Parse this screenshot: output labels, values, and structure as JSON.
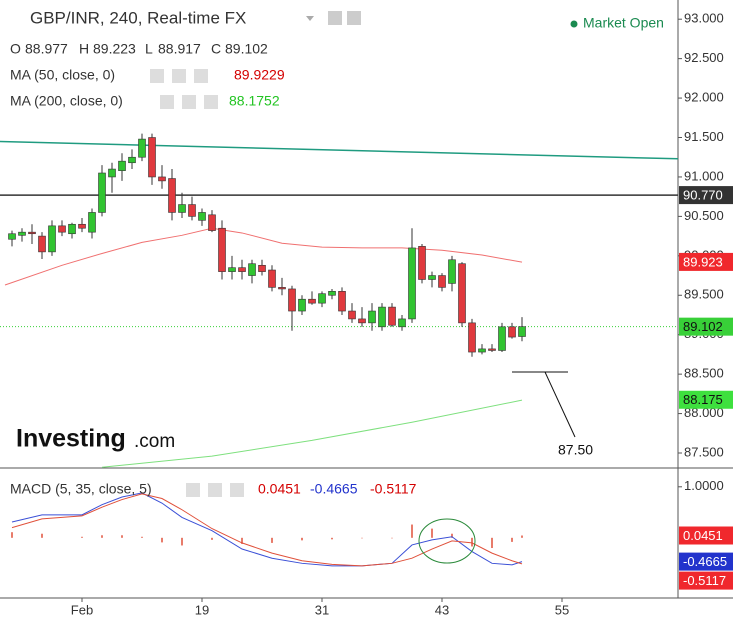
{
  "chart_data": [
    {
      "type": "candlestick",
      "title": "GBP/INR, 240, Real-time FX",
      "status": "Market Open",
      "ohlc_labels": [
        "O",
        "H",
        "L",
        "C"
      ],
      "ohlc_values": [
        88.977,
        89.223,
        88.917,
        89.102
      ],
      "logo": [
        "Investing",
        ".com"
      ],
      "annotation": "87.50",
      "xlim": [
        -1.2,
        66.6
      ],
      "xticks": [
        {
          "value": 7,
          "label": "Feb"
        },
        19,
        31,
        43,
        55
      ],
      "ylim": [
        87.31,
        93.18
      ],
      "yticks": [
        {
          "value": 87.5,
          "label": "87.500"
        },
        {
          "value": 88,
          "label": "88.000"
        },
        {
          "value": 88.5,
          "label": "88.500"
        },
        {
          "value": 89,
          "label": "89.000"
        },
        {
          "value": 89.5,
          "label": "89.500"
        },
        {
          "value": 90,
          "label": "90.000"
        },
        {
          "value": 90.5,
          "label": "90.500"
        },
        {
          "value": 91,
          "label": "91.000"
        },
        {
          "value": 91.5,
          "label": "91.500"
        },
        {
          "value": 92,
          "label": "92.000"
        },
        {
          "value": 92.5,
          "label": "92.500"
        },
        {
          "value": 93,
          "label": "93.000"
        }
      ],
      "up_color": "#31c431",
      "down_color": "#e0393e",
      "close_color": "#38d038",
      "x": [
        0,
        1,
        2,
        3,
        4,
        5,
        6,
        7,
        8,
        9,
        10,
        11,
        12,
        13,
        14,
        15,
        16,
        17,
        18,
        19,
        20,
        21,
        22,
        23,
        24,
        25,
        26,
        27,
        28,
        29,
        30,
        31,
        32,
        33,
        34,
        35,
        36,
        37,
        38,
        39,
        40,
        41,
        42,
        43,
        44,
        45,
        46,
        47,
        48,
        49,
        50,
        51
      ],
      "open": [
        90.21,
        90.26,
        90.3,
        90.25,
        90.05,
        90.38,
        90.28,
        90.4,
        90.3,
        90.55,
        91.0,
        91.08,
        91.18,
        91.25,
        91.5,
        91.0,
        90.98,
        90.55,
        90.65,
        90.45,
        90.52,
        90.35,
        89.8,
        89.85,
        89.75,
        89.88,
        89.82,
        89.6,
        89.58,
        89.3,
        89.45,
        89.4,
        89.5,
        89.55,
        89.3,
        89.2,
        89.15,
        89.1,
        89.35,
        89.1,
        89.2,
        90.12,
        89.7,
        89.75,
        89.65,
        89.9,
        89.15,
        88.78,
        88.82,
        88.8,
        89.1,
        88.977
      ],
      "high": [
        90.32,
        90.35,
        90.4,
        90.3,
        90.45,
        90.45,
        90.42,
        90.48,
        90.6,
        91.15,
        91.18,
        91.3,
        91.35,
        91.55,
        91.55,
        91.15,
        91.1,
        90.8,
        90.75,
        90.6,
        90.58,
        90.45,
        90.0,
        89.95,
        89.95,
        89.95,
        89.88,
        89.72,
        89.62,
        89.5,
        89.55,
        89.55,
        89.58,
        89.6,
        89.4,
        89.35,
        89.4,
        89.4,
        89.4,
        89.25,
        90.35,
        90.15,
        89.8,
        89.78,
        90.0,
        89.92,
        89.2,
        88.88,
        88.88,
        89.15,
        89.15,
        89.223
      ],
      "low": [
        90.12,
        90.18,
        90.15,
        89.96,
        90.0,
        90.25,
        90.22,
        90.3,
        90.22,
        90.5,
        90.8,
        90.95,
        91.1,
        91.2,
        90.9,
        90.85,
        90.45,
        90.48,
        90.45,
        90.38,
        90.3,
        89.7,
        89.7,
        89.7,
        89.65,
        89.75,
        89.55,
        89.5,
        89.05,
        89.25,
        89.38,
        89.35,
        89.45,
        89.25,
        89.15,
        89.1,
        89.05,
        89.05,
        89.1,
        89.05,
        89.15,
        89.65,
        89.6,
        89.55,
        89.55,
        89.1,
        88.72,
        88.75,
        88.78,
        88.78,
        88.95,
        88.917
      ],
      "close": [
        90.28,
        90.3,
        90.28,
        90.05,
        90.38,
        90.3,
        90.4,
        90.35,
        90.55,
        91.05,
        91.1,
        91.2,
        91.25,
        91.48,
        91.0,
        90.95,
        90.55,
        90.65,
        90.5,
        90.55,
        90.32,
        89.8,
        89.85,
        89.8,
        89.9,
        89.8,
        89.6,
        89.58,
        89.3,
        89.45,
        89.4,
        89.52,
        89.55,
        89.3,
        89.2,
        89.15,
        89.3,
        89.35,
        89.12,
        89.2,
        90.1,
        89.7,
        89.75,
        89.6,
        89.95,
        89.15,
        88.78,
        88.82,
        88.8,
        89.1,
        88.97,
        89.102
      ],
      "series": [
        {
          "name": "MA (50, close, 0)",
          "color": "#f07070",
          "text_color": "#d40000",
          "last": 89.9229,
          "tag_label": "89.923",
          "tag_color": "#f0282d",
          "x": [
            -0.7,
            5,
            9,
            13,
            17,
            20,
            23,
            27,
            31,
            35,
            39,
            43,
            47,
            51
          ],
          "values": [
            89.63,
            89.88,
            90.03,
            90.17,
            90.26,
            90.35,
            90.29,
            90.16,
            90.11,
            90.1,
            90.1,
            90.07,
            90.01,
            89.92
          ]
        },
        {
          "name": "MA (200, close, 0)",
          "color": "#7ee07e",
          "text_color": "#23c423",
          "last": 88.1752,
          "tag_label": "88.175",
          "tag_color": "#3ee03e",
          "x": [
            9,
            20,
            30,
            40,
            51
          ],
          "values": [
            87.32,
            87.46,
            87.66,
            87.89,
            88.17
          ]
        }
      ],
      "trendline": {
        "color": "#1f9b80",
        "x": [
          -1.2,
          66.6
        ],
        "values": [
          91.45,
          91.23
        ]
      },
      "levels": [
        {
          "value": 90.77,
          "label": "90.770",
          "color": "#333333"
        }
      ]
    },
    {
      "type": "macd",
      "title": "MACD (5, 35, close, 5)",
      "ylim": [
        -1.18,
        1.29
      ],
      "yticks": [
        {
          "value": 1,
          "label": "1.0000"
        }
      ],
      "series": [
        {
          "name": "Histogram",
          "kind": "histogram",
          "color": "#e0503a",
          "last": 0.0451,
          "x": [
            0,
            3,
            7,
            9,
            11,
            13,
            15,
            17,
            20,
            23,
            26,
            29,
            32,
            35,
            38,
            40,
            42,
            44,
            46,
            48,
            50,
            51
          ],
          "values": [
            0.11,
            0.08,
            0.02,
            0.05,
            0.05,
            0.02,
            -0.09,
            -0.15,
            -0.04,
            -0.12,
            -0.1,
            -0.05,
            -0.03,
            0,
            0,
            0.26,
            0.18,
            0.08,
            -0.17,
            -0.2,
            -0.08,
            0.0451
          ]
        },
        {
          "name": "MACD",
          "kind": "line",
          "color": "#3a4fd6",
          "last": -0.4665,
          "x": [
            0,
            3,
            7,
            9,
            11,
            13,
            15,
            17,
            20,
            23,
            26,
            29,
            32,
            35,
            38,
            40,
            42,
            44,
            46,
            48,
            50,
            51
          ],
          "values": [
            0.31,
            0.45,
            0.45,
            0.65,
            0.8,
            0.88,
            0.68,
            0.4,
            0.14,
            -0.22,
            -0.4,
            -0.5,
            -0.55,
            -0.55,
            -0.5,
            -0.14,
            -0.04,
            0.02,
            -0.27,
            -0.5,
            -0.53,
            -0.4665
          ]
        },
        {
          "name": "Signal",
          "kind": "line",
          "color": "#e0503a",
          "last": -0.5117,
          "x": [
            0,
            3,
            7,
            9,
            11,
            13,
            15,
            17,
            20,
            23,
            26,
            29,
            32,
            35,
            38,
            40,
            42,
            44,
            46,
            48,
            50,
            51
          ],
          "values": [
            0.2,
            0.37,
            0.43,
            0.6,
            0.75,
            0.86,
            0.77,
            0.55,
            0.18,
            -0.1,
            -0.3,
            -0.45,
            -0.52,
            -0.55,
            -0.5,
            -0.4,
            -0.22,
            -0.06,
            -0.1,
            -0.3,
            -0.45,
            -0.5117
          ]
        }
      ]
    }
  ]
}
